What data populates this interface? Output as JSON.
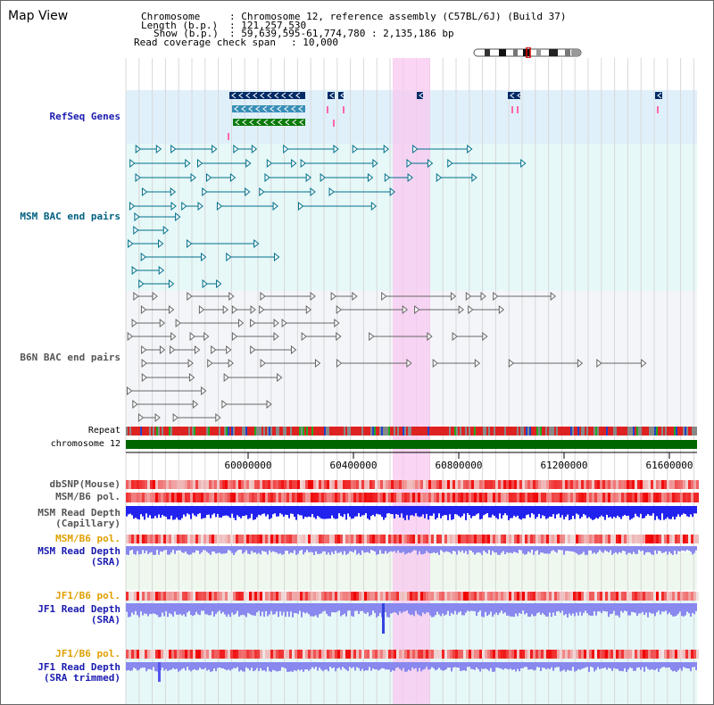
{
  "app": {
    "title": "Map View"
  },
  "info": {
    "chromosome_key": "Chromosome",
    "chromosome_val": ": Chromosome 12, reference assembly (C57BL/6J) (Build 37)",
    "length_key": "Length (b.p.)",
    "length_val": ": 121,257,530",
    "show_key": "Show (b.p.)",
    "show_val": ": 59,639,595-61,774,780 : 2,135,186 bp",
    "coverage_key": "Read coverage check span",
    "coverage_val": ": 10,000"
  },
  "tracks": {
    "refseq_genes": "RefSeq Genes",
    "msm_bac": "MSM BAC end pairs",
    "b6n_bac": "B6N BAC end pairs",
    "repeat": "Repeat",
    "chromosome": "chromosome 12",
    "dbsnp": "dbSNP(Mouse)",
    "msm_b6_pol_1": "MSM/B6 pol.",
    "msm_depth_cap_1": "MSM Read Depth",
    "msm_depth_cap_2": "(Capillary)",
    "msm_b6_pol_2": "MSM/B6 pol.",
    "msm_depth_sra_1": "MSM Read Depth",
    "msm_depth_sra_2": "(SRA)",
    "jf1_b6_pol_1": "JF1/B6 pol.",
    "jf1_depth_sra_1": "JF1 Read Depth",
    "jf1_depth_sra_2": "(SRA)",
    "jf1_b6_pol_2": "JF1/B6 pol.",
    "jf1_depth_trim_1": "JF1 Read Depth",
    "jf1_depth_trim_2": "(SRA trimmed)"
  },
  "ruler": {
    "ticks": [
      "60000000",
      "60400000",
      "60800000",
      "61200000",
      "61600000"
    ]
  },
  "colors": {
    "refseq_bg": "#dff0fb",
    "msm_bg": "#e6f8f8",
    "b6n_bg": "#f4f5f9",
    "highlight": "#f8c8f0",
    "label_blue": "#1a1ab0",
    "label_teal": "#006080",
    "label_gray": "#555555",
    "label_orange": "#e0a000",
    "repeat_red": "#dd2222",
    "chromosome_green": "#006600",
    "depth_blue": "#2222ee",
    "depth_light": "#8888ee"
  }
}
